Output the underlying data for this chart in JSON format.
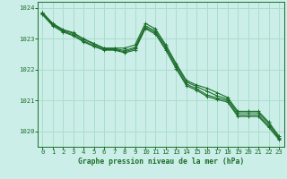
{
  "background_color": "#cceee8",
  "grid_color": "#aaddcc",
  "line_color": "#1a6e2a",
  "marker_color": "#1a6e2a",
  "xlabel": "Graphe pression niveau de la mer (hPa)",
  "xlabel_color": "#1a6e2a",
  "tick_color": "#1a6e2a",
  "spine_color": "#1a6e2a",
  "xlim": [
    -0.5,
    23.5
  ],
  "ylim": [
    1019.5,
    1024.2
  ],
  "yticks": [
    1020,
    1021,
    1022,
    1023,
    1024
  ],
  "xticks": [
    0,
    1,
    2,
    3,
    4,
    5,
    6,
    7,
    8,
    9,
    10,
    11,
    12,
    13,
    14,
    15,
    16,
    17,
    18,
    19,
    20,
    21,
    22,
    23
  ],
  "series": [
    [
      1023.85,
      1023.5,
      1023.3,
      1023.2,
      1023.0,
      1022.85,
      1022.7,
      1022.7,
      1022.7,
      1022.8,
      1023.5,
      1023.32,
      1022.8,
      1022.2,
      1021.65,
      1021.5,
      1021.4,
      1021.25,
      1021.1,
      1020.65,
      1020.65,
      1020.65,
      1020.3,
      1019.85
    ],
    [
      1023.85,
      1023.48,
      1023.28,
      1023.18,
      1022.98,
      1022.83,
      1022.68,
      1022.68,
      1022.62,
      1022.72,
      1023.42,
      1023.25,
      1022.75,
      1022.15,
      1021.6,
      1021.45,
      1021.3,
      1021.15,
      1021.05,
      1020.6,
      1020.6,
      1020.6,
      1020.25,
      1019.8
    ],
    [
      1023.82,
      1023.45,
      1023.25,
      1023.13,
      1022.93,
      1022.78,
      1022.65,
      1022.65,
      1022.58,
      1022.68,
      1023.37,
      1023.2,
      1022.68,
      1022.08,
      1021.53,
      1021.38,
      1021.18,
      1021.08,
      1021.0,
      1020.53,
      1020.53,
      1020.53,
      1020.18,
      1019.77
    ],
    [
      1023.78,
      1023.42,
      1023.22,
      1023.1,
      1022.9,
      1022.75,
      1022.63,
      1022.63,
      1022.55,
      1022.63,
      1023.33,
      1023.15,
      1022.63,
      1022.03,
      1021.48,
      1021.33,
      1021.13,
      1021.03,
      1020.95,
      1020.48,
      1020.48,
      1020.48,
      1020.13,
      1019.73
    ]
  ]
}
